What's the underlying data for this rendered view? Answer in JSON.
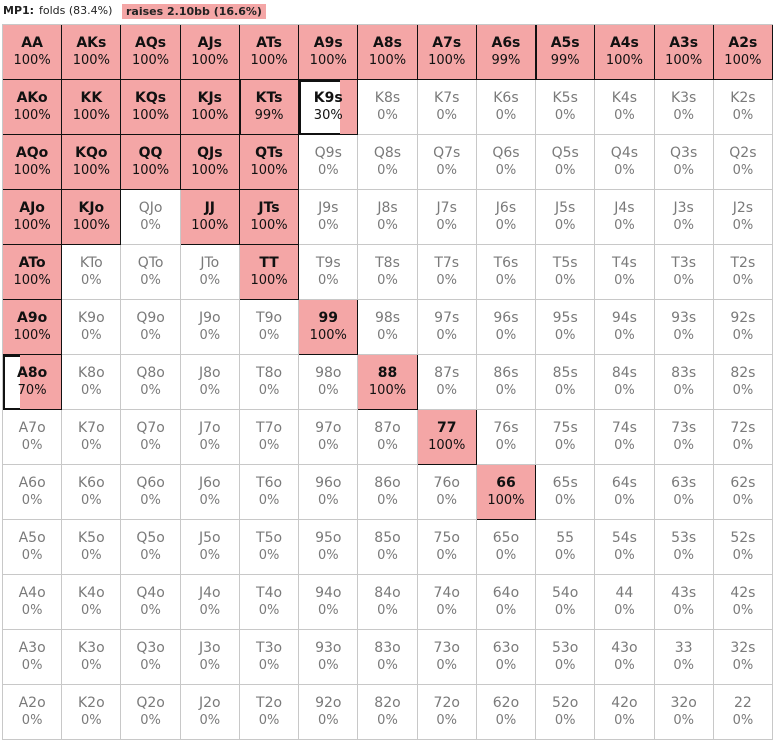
{
  "header": {
    "player": "MP1:",
    "folds": "folds (83.4%)",
    "raises": "raises 2.10bb (16.6%)"
  },
  "colors": {
    "raise_fill": "#f4a6a6",
    "grid_line": "#c8c8c8",
    "active_border": "#111111"
  },
  "grid": [
    [
      {
        "hand": "AA",
        "pct": "100%",
        "raise": 1.0
      },
      {
        "hand": "AKs",
        "pct": "100%",
        "raise": 1.0
      },
      {
        "hand": "AQs",
        "pct": "100%",
        "raise": 1.0
      },
      {
        "hand": "AJs",
        "pct": "100%",
        "raise": 1.0
      },
      {
        "hand": "ATs",
        "pct": "100%",
        "raise": 1.0
      },
      {
        "hand": "A9s",
        "pct": "100%",
        "raise": 1.0
      },
      {
        "hand": "A8s",
        "pct": "100%",
        "raise": 1.0
      },
      {
        "hand": "A7s",
        "pct": "100%",
        "raise": 1.0
      },
      {
        "hand": "A6s",
        "pct": "99%",
        "raise": 0.99
      },
      {
        "hand": "A5s",
        "pct": "99%",
        "raise": 0.99
      },
      {
        "hand": "A4s",
        "pct": "100%",
        "raise": 1.0
      },
      {
        "hand": "A3s",
        "pct": "100%",
        "raise": 1.0
      },
      {
        "hand": "A2s",
        "pct": "100%",
        "raise": 1.0
      }
    ],
    [
      {
        "hand": "AKo",
        "pct": "100%",
        "raise": 1.0
      },
      {
        "hand": "KK",
        "pct": "100%",
        "raise": 1.0
      },
      {
        "hand": "KQs",
        "pct": "100%",
        "raise": 1.0
      },
      {
        "hand": "KJs",
        "pct": "100%",
        "raise": 1.0
      },
      {
        "hand": "KTs",
        "pct": "99%",
        "raise": 0.99
      },
      {
        "hand": "K9s",
        "pct": "30%",
        "raise": 0.3
      },
      {
        "hand": "K8s",
        "pct": "0%",
        "raise": 0
      },
      {
        "hand": "K7s",
        "pct": "0%",
        "raise": 0
      },
      {
        "hand": "K6s",
        "pct": "0%",
        "raise": 0
      },
      {
        "hand": "K5s",
        "pct": "0%",
        "raise": 0
      },
      {
        "hand": "K4s",
        "pct": "0%",
        "raise": 0
      },
      {
        "hand": "K3s",
        "pct": "0%",
        "raise": 0
      },
      {
        "hand": "K2s",
        "pct": "0%",
        "raise": 0
      }
    ],
    [
      {
        "hand": "AQo",
        "pct": "100%",
        "raise": 1.0
      },
      {
        "hand": "KQo",
        "pct": "100%",
        "raise": 1.0
      },
      {
        "hand": "QQ",
        "pct": "100%",
        "raise": 1.0
      },
      {
        "hand": "QJs",
        "pct": "100%",
        "raise": 1.0
      },
      {
        "hand": "QTs",
        "pct": "100%",
        "raise": 1.0
      },
      {
        "hand": "Q9s",
        "pct": "0%",
        "raise": 0
      },
      {
        "hand": "Q8s",
        "pct": "0%",
        "raise": 0
      },
      {
        "hand": "Q7s",
        "pct": "0%",
        "raise": 0
      },
      {
        "hand": "Q6s",
        "pct": "0%",
        "raise": 0
      },
      {
        "hand": "Q5s",
        "pct": "0%",
        "raise": 0
      },
      {
        "hand": "Q4s",
        "pct": "0%",
        "raise": 0
      },
      {
        "hand": "Q3s",
        "pct": "0%",
        "raise": 0
      },
      {
        "hand": "Q2s",
        "pct": "0%",
        "raise": 0
      }
    ],
    [
      {
        "hand": "AJo",
        "pct": "100%",
        "raise": 1.0
      },
      {
        "hand": "KJo",
        "pct": "100%",
        "raise": 1.0
      },
      {
        "hand": "QJo",
        "pct": "0%",
        "raise": 0
      },
      {
        "hand": "JJ",
        "pct": "100%",
        "raise": 1.0
      },
      {
        "hand": "JTs",
        "pct": "100%",
        "raise": 1.0
      },
      {
        "hand": "J9s",
        "pct": "0%",
        "raise": 0
      },
      {
        "hand": "J8s",
        "pct": "0%",
        "raise": 0
      },
      {
        "hand": "J7s",
        "pct": "0%",
        "raise": 0
      },
      {
        "hand": "J6s",
        "pct": "0%",
        "raise": 0
      },
      {
        "hand": "J5s",
        "pct": "0%",
        "raise": 0
      },
      {
        "hand": "J4s",
        "pct": "0%",
        "raise": 0
      },
      {
        "hand": "J3s",
        "pct": "0%",
        "raise": 0
      },
      {
        "hand": "J2s",
        "pct": "0%",
        "raise": 0
      }
    ],
    [
      {
        "hand": "ATo",
        "pct": "100%",
        "raise": 1.0
      },
      {
        "hand": "KTo",
        "pct": "0%",
        "raise": 0
      },
      {
        "hand": "QTo",
        "pct": "0%",
        "raise": 0
      },
      {
        "hand": "JTo",
        "pct": "0%",
        "raise": 0
      },
      {
        "hand": "TT",
        "pct": "100%",
        "raise": 1.0
      },
      {
        "hand": "T9s",
        "pct": "0%",
        "raise": 0
      },
      {
        "hand": "T8s",
        "pct": "0%",
        "raise": 0
      },
      {
        "hand": "T7s",
        "pct": "0%",
        "raise": 0
      },
      {
        "hand": "T6s",
        "pct": "0%",
        "raise": 0
      },
      {
        "hand": "T5s",
        "pct": "0%",
        "raise": 0
      },
      {
        "hand": "T4s",
        "pct": "0%",
        "raise": 0
      },
      {
        "hand": "T3s",
        "pct": "0%",
        "raise": 0
      },
      {
        "hand": "T2s",
        "pct": "0%",
        "raise": 0
      }
    ],
    [
      {
        "hand": "A9o",
        "pct": "100%",
        "raise": 1.0
      },
      {
        "hand": "K9o",
        "pct": "0%",
        "raise": 0
      },
      {
        "hand": "Q9o",
        "pct": "0%",
        "raise": 0
      },
      {
        "hand": "J9o",
        "pct": "0%",
        "raise": 0
      },
      {
        "hand": "T9o",
        "pct": "0%",
        "raise": 0
      },
      {
        "hand": "99",
        "pct": "100%",
        "raise": 1.0
      },
      {
        "hand": "98s",
        "pct": "0%",
        "raise": 0
      },
      {
        "hand": "97s",
        "pct": "0%",
        "raise": 0
      },
      {
        "hand": "96s",
        "pct": "0%",
        "raise": 0
      },
      {
        "hand": "95s",
        "pct": "0%",
        "raise": 0
      },
      {
        "hand": "94s",
        "pct": "0%",
        "raise": 0
      },
      {
        "hand": "93s",
        "pct": "0%",
        "raise": 0
      },
      {
        "hand": "92s",
        "pct": "0%",
        "raise": 0
      }
    ],
    [
      {
        "hand": "A8o",
        "pct": "70%",
        "raise": 0.7
      },
      {
        "hand": "K8o",
        "pct": "0%",
        "raise": 0
      },
      {
        "hand": "Q8o",
        "pct": "0%",
        "raise": 0
      },
      {
        "hand": "J8o",
        "pct": "0%",
        "raise": 0
      },
      {
        "hand": "T8o",
        "pct": "0%",
        "raise": 0
      },
      {
        "hand": "98o",
        "pct": "0%",
        "raise": 0
      },
      {
        "hand": "88",
        "pct": "100%",
        "raise": 1.0
      },
      {
        "hand": "87s",
        "pct": "0%",
        "raise": 0
      },
      {
        "hand": "86s",
        "pct": "0%",
        "raise": 0
      },
      {
        "hand": "85s",
        "pct": "0%",
        "raise": 0
      },
      {
        "hand": "84s",
        "pct": "0%",
        "raise": 0
      },
      {
        "hand": "83s",
        "pct": "0%",
        "raise": 0
      },
      {
        "hand": "82s",
        "pct": "0%",
        "raise": 0
      }
    ],
    [
      {
        "hand": "A7o",
        "pct": "0%",
        "raise": 0
      },
      {
        "hand": "K7o",
        "pct": "0%",
        "raise": 0
      },
      {
        "hand": "Q7o",
        "pct": "0%",
        "raise": 0
      },
      {
        "hand": "J7o",
        "pct": "0%",
        "raise": 0
      },
      {
        "hand": "T7o",
        "pct": "0%",
        "raise": 0
      },
      {
        "hand": "97o",
        "pct": "0%",
        "raise": 0
      },
      {
        "hand": "87o",
        "pct": "0%",
        "raise": 0
      },
      {
        "hand": "77",
        "pct": "100%",
        "raise": 1.0
      },
      {
        "hand": "76s",
        "pct": "0%",
        "raise": 0
      },
      {
        "hand": "75s",
        "pct": "0%",
        "raise": 0
      },
      {
        "hand": "74s",
        "pct": "0%",
        "raise": 0
      },
      {
        "hand": "73s",
        "pct": "0%",
        "raise": 0
      },
      {
        "hand": "72s",
        "pct": "0%",
        "raise": 0
      }
    ],
    [
      {
        "hand": "A6o",
        "pct": "0%",
        "raise": 0
      },
      {
        "hand": "K6o",
        "pct": "0%",
        "raise": 0
      },
      {
        "hand": "Q6o",
        "pct": "0%",
        "raise": 0
      },
      {
        "hand": "J6o",
        "pct": "0%",
        "raise": 0
      },
      {
        "hand": "T6o",
        "pct": "0%",
        "raise": 0
      },
      {
        "hand": "96o",
        "pct": "0%",
        "raise": 0
      },
      {
        "hand": "86o",
        "pct": "0%",
        "raise": 0
      },
      {
        "hand": "76o",
        "pct": "0%",
        "raise": 0
      },
      {
        "hand": "66",
        "pct": "100%",
        "raise": 1.0
      },
      {
        "hand": "65s",
        "pct": "0%",
        "raise": 0
      },
      {
        "hand": "64s",
        "pct": "0%",
        "raise": 0
      },
      {
        "hand": "63s",
        "pct": "0%",
        "raise": 0
      },
      {
        "hand": "62s",
        "pct": "0%",
        "raise": 0
      }
    ],
    [
      {
        "hand": "A5o",
        "pct": "0%",
        "raise": 0
      },
      {
        "hand": "K5o",
        "pct": "0%",
        "raise": 0
      },
      {
        "hand": "Q5o",
        "pct": "0%",
        "raise": 0
      },
      {
        "hand": "J5o",
        "pct": "0%",
        "raise": 0
      },
      {
        "hand": "T5o",
        "pct": "0%",
        "raise": 0
      },
      {
        "hand": "95o",
        "pct": "0%",
        "raise": 0
      },
      {
        "hand": "85o",
        "pct": "0%",
        "raise": 0
      },
      {
        "hand": "75o",
        "pct": "0%",
        "raise": 0
      },
      {
        "hand": "65o",
        "pct": "0%",
        "raise": 0
      },
      {
        "hand": "55",
        "pct": "0%",
        "raise": 0
      },
      {
        "hand": "54s",
        "pct": "0%",
        "raise": 0
      },
      {
        "hand": "53s",
        "pct": "0%",
        "raise": 0
      },
      {
        "hand": "52s",
        "pct": "0%",
        "raise": 0
      }
    ],
    [
      {
        "hand": "A4o",
        "pct": "0%",
        "raise": 0
      },
      {
        "hand": "K4o",
        "pct": "0%",
        "raise": 0
      },
      {
        "hand": "Q4o",
        "pct": "0%",
        "raise": 0
      },
      {
        "hand": "J4o",
        "pct": "0%",
        "raise": 0
      },
      {
        "hand": "T4o",
        "pct": "0%",
        "raise": 0
      },
      {
        "hand": "94o",
        "pct": "0%",
        "raise": 0
      },
      {
        "hand": "84o",
        "pct": "0%",
        "raise": 0
      },
      {
        "hand": "74o",
        "pct": "0%",
        "raise": 0
      },
      {
        "hand": "64o",
        "pct": "0%",
        "raise": 0
      },
      {
        "hand": "54o",
        "pct": "0%",
        "raise": 0
      },
      {
        "hand": "44",
        "pct": "0%",
        "raise": 0
      },
      {
        "hand": "43s",
        "pct": "0%",
        "raise": 0
      },
      {
        "hand": "42s",
        "pct": "0%",
        "raise": 0
      }
    ],
    [
      {
        "hand": "A3o",
        "pct": "0%",
        "raise": 0
      },
      {
        "hand": "K3o",
        "pct": "0%",
        "raise": 0
      },
      {
        "hand": "Q3o",
        "pct": "0%",
        "raise": 0
      },
      {
        "hand": "J3o",
        "pct": "0%",
        "raise": 0
      },
      {
        "hand": "T3o",
        "pct": "0%",
        "raise": 0
      },
      {
        "hand": "93o",
        "pct": "0%",
        "raise": 0
      },
      {
        "hand": "83o",
        "pct": "0%",
        "raise": 0
      },
      {
        "hand": "73o",
        "pct": "0%",
        "raise": 0
      },
      {
        "hand": "63o",
        "pct": "0%",
        "raise": 0
      },
      {
        "hand": "53o",
        "pct": "0%",
        "raise": 0
      },
      {
        "hand": "43o",
        "pct": "0%",
        "raise": 0
      },
      {
        "hand": "33",
        "pct": "0%",
        "raise": 0
      },
      {
        "hand": "32s",
        "pct": "0%",
        "raise": 0
      }
    ],
    [
      {
        "hand": "A2o",
        "pct": "0%",
        "raise": 0
      },
      {
        "hand": "K2o",
        "pct": "0%",
        "raise": 0
      },
      {
        "hand": "Q2o",
        "pct": "0%",
        "raise": 0
      },
      {
        "hand": "J2o",
        "pct": "0%",
        "raise": 0
      },
      {
        "hand": "T2o",
        "pct": "0%",
        "raise": 0
      },
      {
        "hand": "92o",
        "pct": "0%",
        "raise": 0
      },
      {
        "hand": "82o",
        "pct": "0%",
        "raise": 0
      },
      {
        "hand": "72o",
        "pct": "0%",
        "raise": 0
      },
      {
        "hand": "62o",
        "pct": "0%",
        "raise": 0
      },
      {
        "hand": "52o",
        "pct": "0%",
        "raise": 0
      },
      {
        "hand": "42o",
        "pct": "0%",
        "raise": 0
      },
      {
        "hand": "32o",
        "pct": "0%",
        "raise": 0
      },
      {
        "hand": "22",
        "pct": "0%",
        "raise": 0
      }
    ]
  ]
}
